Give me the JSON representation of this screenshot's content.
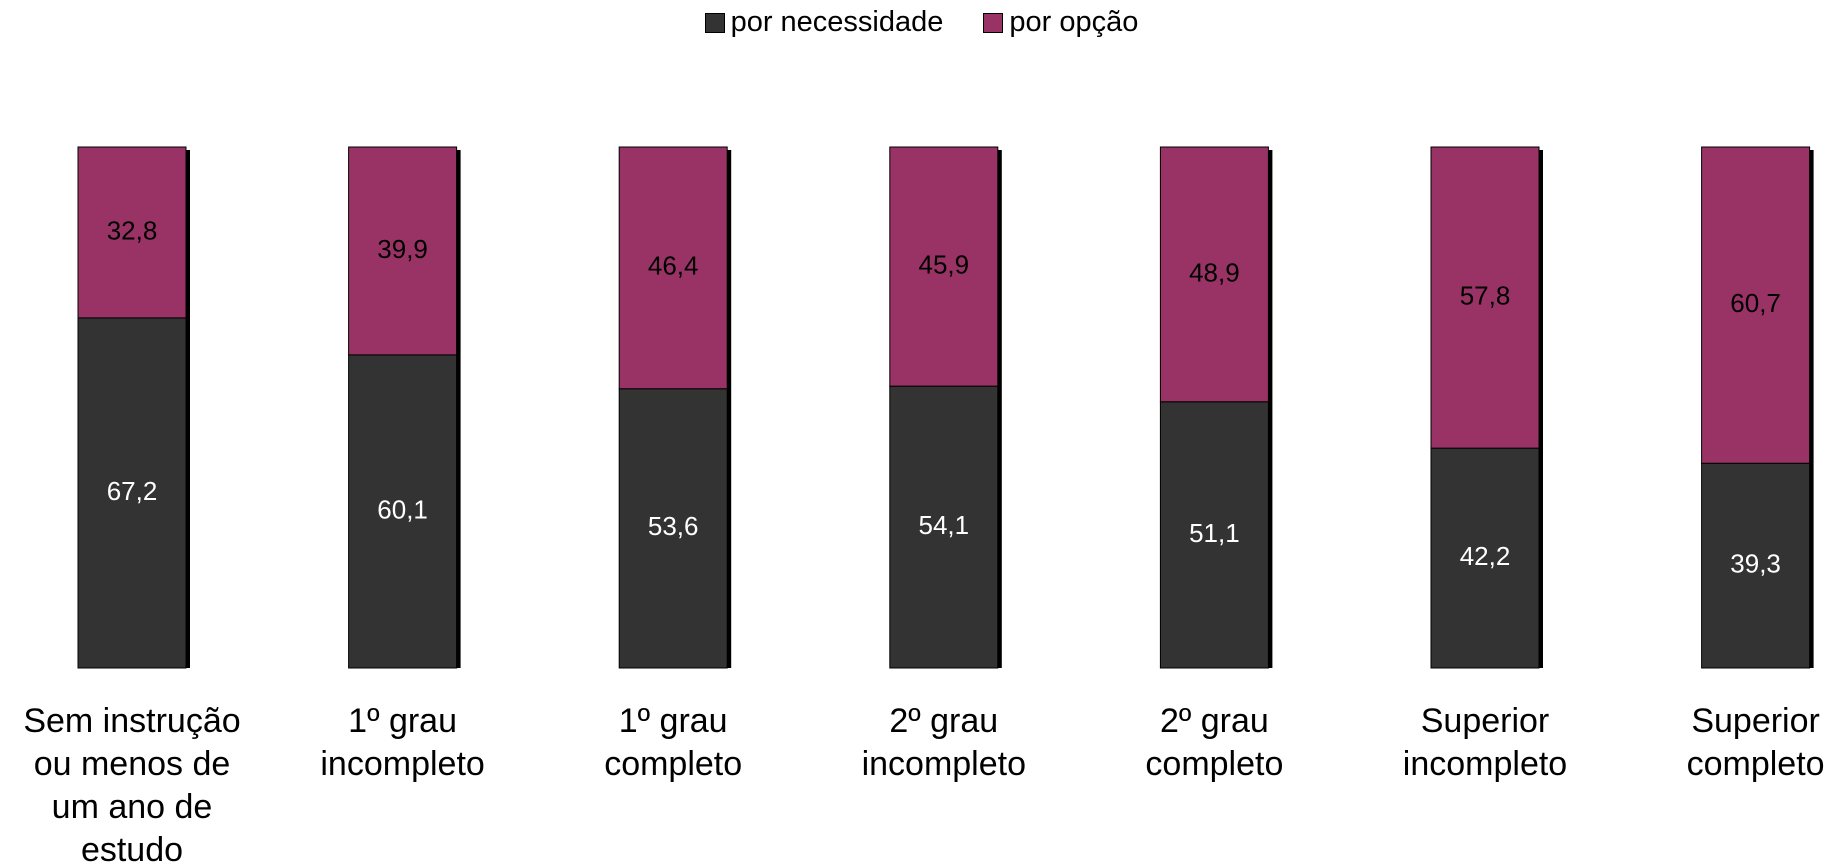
{
  "chart_data": {
    "type": "stacked_bar",
    "categories": [
      "Sem instrução ou menos de um ano de estudo",
      "1º grau incompleto",
      "1º grau completo",
      "2º grau incompleto",
      "2º grau completo",
      "Superior incompleto",
      "Superior completo"
    ],
    "series": [
      {
        "name": "por necessidade",
        "color": "#333333",
        "values": [
          67.2,
          60.1,
          53.6,
          54.1,
          51.1,
          42.2,
          39.3
        ],
        "value_labels": [
          "67,2",
          "60,1",
          "53,6",
          "54,1",
          "51,1",
          "42,2",
          "39,3"
        ]
      },
      {
        "name": "por opção",
        "color": "#993366",
        "values": [
          32.8,
          39.9,
          46.4,
          45.9,
          48.9,
          57.8,
          60.7
        ],
        "value_labels": [
          "32,8",
          "39,9",
          "46,4",
          "45,9",
          "48,9",
          "57,8",
          "60,7"
        ]
      }
    ],
    "legend": "top"
  }
}
